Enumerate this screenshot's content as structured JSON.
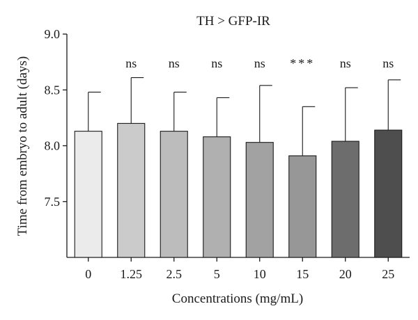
{
  "chart_data": {
    "type": "bar",
    "title": "TH > GFP-IR",
    "xlabel": "Concentrations (mg/mL)",
    "ylabel": "Time from embryo to adult (days)",
    "categories": [
      "0",
      "1.25",
      "2.5",
      "5",
      "10",
      "15",
      "20",
      "25"
    ],
    "values": [
      8.13,
      8.2,
      8.13,
      8.08,
      8.03,
      7.91,
      8.04,
      8.14
    ],
    "errors": [
      0.35,
      0.41,
      0.35,
      0.35,
      0.51,
      0.44,
      0.48,
      0.45
    ],
    "significance": [
      "",
      "ns",
      "ns",
      "ns",
      "ns",
      "***",
      "ns",
      "ns"
    ],
    "bar_colors": [
      "#ebebeb",
      "#cbcbcb",
      "#bcbcbc",
      "#b0b0b0",
      "#a2a2a2",
      "#979797",
      "#6d6d6d",
      "#4e4e4e"
    ],
    "ylim": [
      7.0,
      9.0
    ],
    "yticks": [
      7.5,
      8.0,
      8.5,
      9.0
    ],
    "ytick_labels": [
      "7.5",
      "8.0",
      "8.5",
      "9.0"
    ],
    "grid": false,
    "legend": "none"
  }
}
